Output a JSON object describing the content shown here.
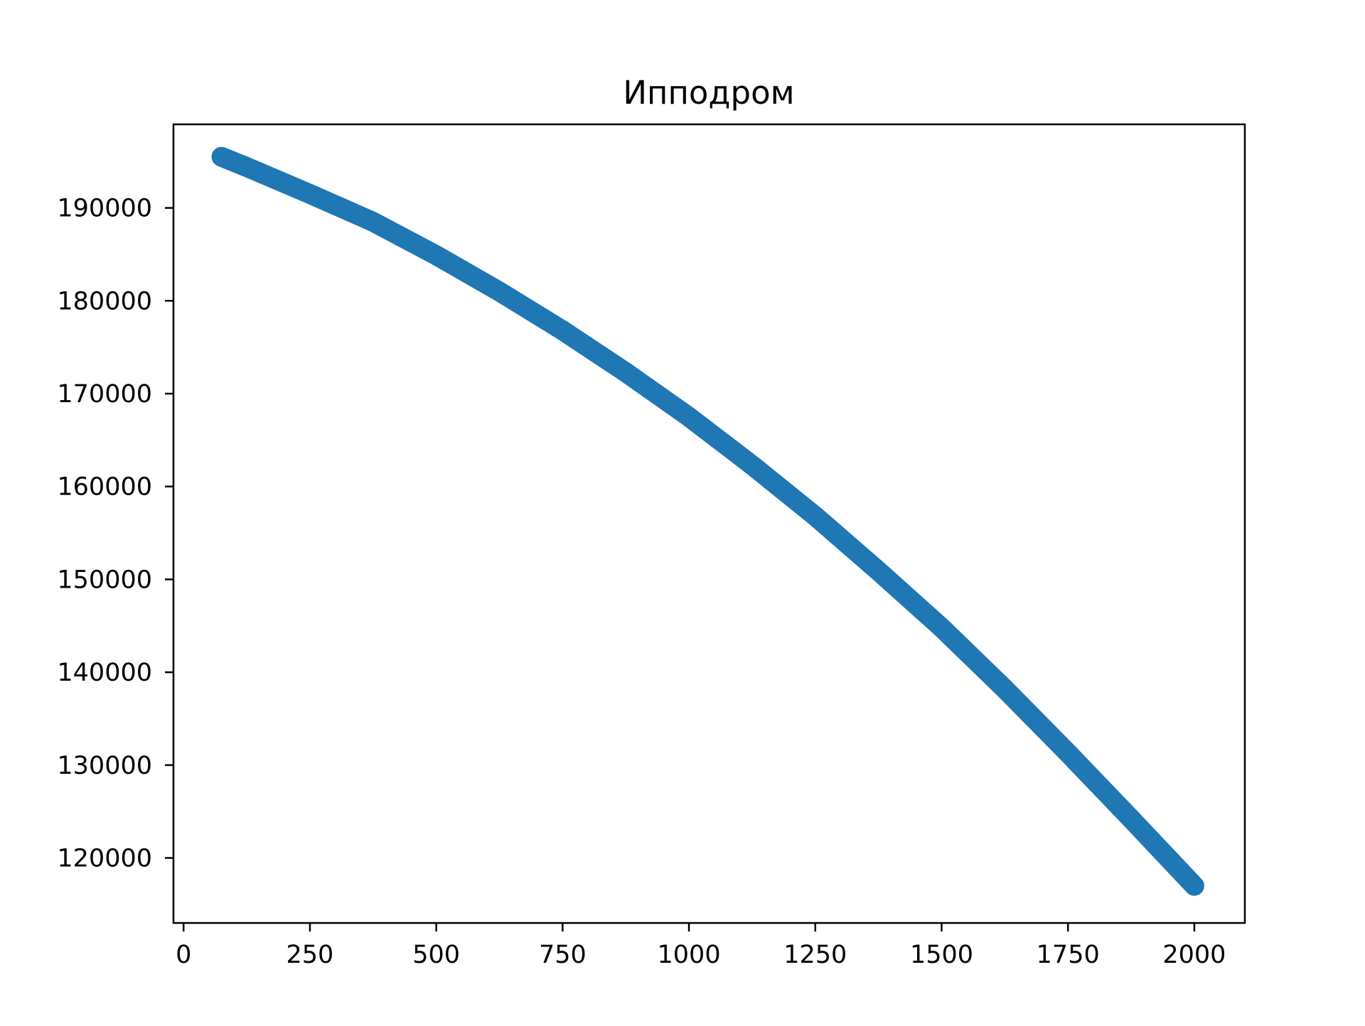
{
  "chart_data": {
    "type": "line",
    "title": "Ипподром",
    "xlabel": "",
    "ylabel": "",
    "xlim": [
      -20,
      2100
    ],
    "ylim": [
      113000,
      199000
    ],
    "x_ticks": [
      0,
      250,
      500,
      750,
      1000,
      1250,
      1500,
      1750,
      2000
    ],
    "x_tick_labels": [
      "0",
      "250",
      "500",
      "750",
      "1000",
      "1250",
      "1500",
      "1750",
      "2000"
    ],
    "y_ticks": [
      120000,
      130000,
      140000,
      150000,
      160000,
      170000,
      180000,
      190000
    ],
    "y_tick_labels": [
      "120000",
      "130000",
      "140000",
      "150000",
      "160000",
      "170000",
      "180000",
      "190000"
    ],
    "grid": false,
    "series": [
      {
        "color": "#1f77b4",
        "x": [
          75,
          125,
          250,
          375,
          500,
          625,
          750,
          875,
          1000,
          1125,
          1250,
          1375,
          1500,
          1625,
          1750,
          1875,
          2000
        ],
        "y": [
          195500,
          194400,
          191500,
          188500,
          184900,
          181000,
          176800,
          172300,
          167500,
          162300,
          156800,
          150900,
          144800,
          138200,
          131300,
          124200,
          117000
        ]
      }
    ]
  }
}
